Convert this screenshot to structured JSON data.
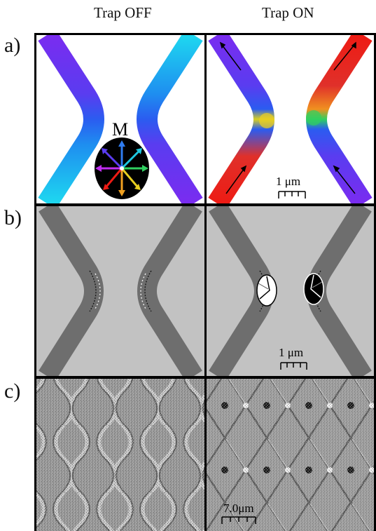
{
  "figure": {
    "columns": [
      "Trap OFF",
      "Trap ON"
    ],
    "rows": [
      "a)",
      "b)",
      "c)"
    ],
    "magnetization_label": "M",
    "scale_bars": {
      "a_trap_on": "1 μm",
      "b_trap_on": "1 μm",
      "c_trap_on": "7.0μm"
    },
    "colors": {
      "violet": "#7a2cf0",
      "blue": "#2b5cf0",
      "cyan": "#1ed8f0",
      "red": "#ee1b14",
      "gray_background": "#c2c2c2",
      "gray_wire": "#6e6e6e"
    }
  }
}
